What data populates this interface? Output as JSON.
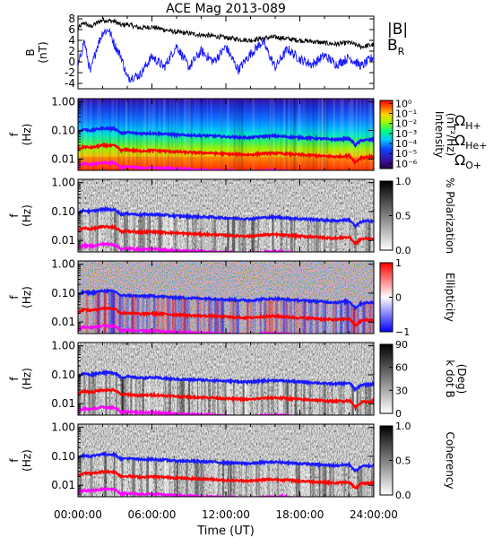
{
  "title": "ACE Mag 2013-089",
  "colors": {
    "b_total": "#000000",
    "b_r": "#1a1aff",
    "omega_h": "#1a1aff",
    "omega_he": "#ff0000",
    "omega_o": "#ff00ff"
  },
  "chart_data": [
    {
      "type": "line",
      "title": "ACE Mag 2013-089",
      "ylabel_line1": "B",
      "ylabel_line2": "(nT)",
      "ylim": [
        -5,
        8.5
      ],
      "yticks": [
        "8",
        "6",
        "4",
        "2",
        "0",
        "-2",
        "-4"
      ],
      "ytick_values": [
        8,
        6,
        4,
        2,
        0,
        -2,
        -4
      ],
      "xlim": [
        0,
        24
      ],
      "legend": "right",
      "series": [
        {
          "name": "|B|",
          "color": "#000000",
          "x": [
            0,
            0.5,
            1,
            1.5,
            2,
            3,
            3.5,
            4,
            5,
            6,
            7,
            8,
            9,
            10,
            11,
            12,
            13,
            14,
            15,
            16,
            17,
            18,
            19,
            20,
            21,
            22,
            23,
            24
          ],
          "values": [
            6.2,
            7.3,
            6.5,
            7.2,
            7.8,
            7.5,
            6.8,
            7,
            6.3,
            6.5,
            6,
            5.5,
            5.3,
            5,
            4.8,
            4.5,
            4.2,
            4,
            4.4,
            4.6,
            4.3,
            4,
            3.8,
            3.5,
            3.3,
            3.6,
            2.8,
            3.2
          ]
        },
        {
          "name": "B",
          "subscript": "R",
          "color": "#1a1aff",
          "x": [
            0,
            0.5,
            1,
            1.5,
            2,
            2.5,
            3,
            3.5,
            4,
            5,
            6,
            7,
            8,
            9,
            10,
            11,
            12,
            13,
            14,
            15,
            16,
            17,
            18,
            19,
            20,
            21,
            22,
            23,
            24
          ],
          "values": [
            -1,
            4,
            -2,
            2.5,
            5.5,
            6,
            3,
            1,
            -3,
            -2.5,
            1,
            -1,
            3,
            -1,
            2,
            0,
            2.8,
            -1.5,
            1.5,
            3.8,
            -1,
            2.4,
            0.5,
            -0.5,
            1.2,
            -0.5,
            0.8,
            -0.8,
            1
          ]
        }
      ]
    },
    {
      "type": "heatmap",
      "ylabel_line1": "f",
      "ylabel_line2": "(Hz)",
      "yticks": [
        "1.00",
        "0.10",
        "0.01"
      ],
      "ytick_values": [
        1,
        0.1,
        0.01
      ],
      "ylim": [
        0.004,
        1.3
      ],
      "colorbar": {
        "label_line1": "Intensity",
        "label_line2": "(nT²/Hz)",
        "ticks": [
          "10⁰",
          "10⁻¹",
          "10⁻²",
          "10⁻³",
          "10⁻⁴",
          "10⁻⁵",
          "10⁻⁶"
        ],
        "tick_values": [
          0,
          -1,
          -2,
          -3,
          -4,
          -5,
          -6
        ],
        "range": [
          -6.5,
          0.3
        ],
        "scale": "rainbow"
      },
      "legend_items": [
        {
          "name": "Ω",
          "subscript": "H+",
          "color": "#1a1aff"
        },
        {
          "name": "Ω",
          "subscript": "He+",
          "color": "#ff0000"
        },
        {
          "name": "Ω",
          "subscript": "O+",
          "color": "#ff00ff"
        }
      ]
    },
    {
      "type": "heatmap",
      "ylabel_line1": "f",
      "ylabel_line2": "(Hz)",
      "yticks": [
        "1.00",
        "0.10",
        "0.01"
      ],
      "ytick_values": [
        1,
        0.1,
        0.01
      ],
      "ylim": [
        0.004,
        1.3
      ],
      "colorbar": {
        "label_line1": "% Polarization",
        "label_line2": "",
        "ticks": [
          "1.0",
          "0.5",
          "0.0"
        ],
        "tick_values": [
          1,
          0.5,
          0
        ],
        "range": [
          0,
          1
        ],
        "scale": "gray"
      }
    },
    {
      "type": "heatmap",
      "ylabel_line1": "f",
      "ylabel_line2": "(Hz)",
      "yticks": [
        "1.00",
        "0.10",
        "0.01"
      ],
      "ytick_values": [
        1,
        0.1,
        0.01
      ],
      "ylim": [
        0.004,
        1.3
      ],
      "colorbar": {
        "label_line1": "Ellipticity",
        "label_line2": "",
        "ticks": [
          "1",
          "0",
          "−1"
        ],
        "tick_values": [
          1,
          0,
          -1
        ],
        "range": [
          -1,
          1
        ],
        "scale": "bwr"
      }
    },
    {
      "type": "heatmap",
      "ylabel_line1": "f",
      "ylabel_line2": "(Hz)",
      "yticks": [
        "1.00",
        "0.10",
        "0.01"
      ],
      "ytick_values": [
        1,
        0.1,
        0.01
      ],
      "ylim": [
        0.004,
        1.3
      ],
      "colorbar": {
        "label_line1": "k dot B",
        "label_line2": "(Deg)",
        "ticks": [
          "90",
          "60",
          "30",
          "0"
        ],
        "tick_values": [
          90,
          60,
          30,
          0
        ],
        "range": [
          0,
          90
        ],
        "scale": "gray"
      }
    },
    {
      "type": "heatmap",
      "ylabel_line1": "f",
      "ylabel_line2": "(Hz)",
      "yticks": [
        "1.00",
        "0.10",
        "0.01"
      ],
      "ytick_values": [
        1,
        0.1,
        0.01
      ],
      "ylim": [
        0.004,
        1.3
      ],
      "colorbar": {
        "label_line1": "Coherency",
        "label_line2": "",
        "ticks": [
          "1.0",
          "0.5",
          "0.0"
        ],
        "tick_values": [
          1,
          0.5,
          0
        ],
        "range": [
          0,
          1
        ],
        "scale": "gray"
      }
    }
  ],
  "gyrofrequency_lines": {
    "x": [
      0,
      0.5,
      1,
      1.5,
      2,
      3,
      3.5,
      4,
      5,
      6,
      7,
      8,
      9,
      10,
      11,
      12,
      13,
      14,
      15,
      16,
      17,
      18,
      19,
      20,
      21,
      22,
      22.5,
      23,
      24
    ],
    "omega_h": [
      0.09,
      0.11,
      0.1,
      0.11,
      0.12,
      0.115,
      0.08,
      0.085,
      0.078,
      0.08,
      0.075,
      0.07,
      0.068,
      0.066,
      0.064,
      0.06,
      0.058,
      0.056,
      0.062,
      0.064,
      0.06,
      0.056,
      0.054,
      0.05,
      0.048,
      0.052,
      0.03,
      0.045,
      0.048
    ],
    "omega_he": [
      0.022,
      0.027,
      0.025,
      0.027,
      0.03,
      0.029,
      0.02,
      0.021,
      0.019,
      0.02,
      0.019,
      0.018,
      0.017,
      0.0165,
      0.016,
      0.015,
      0.0145,
      0.014,
      0.0155,
      0.016,
      0.015,
      0.014,
      0.0135,
      0.0125,
      0.012,
      0.013,
      0.0075,
      0.0113,
      0.012
    ],
    "omega_o": [
      0.0056,
      0.0068,
      0.0063,
      0.0068,
      0.0075,
      0.0072,
      0.005,
      0.0053,
      0.0049,
      0.005,
      0.0047,
      0.0044,
      0.0043,
      0.0041,
      0.004,
      0.0038,
      0.0036,
      0.0035,
      0.0039,
      0.004,
      0.0038,
      0.0035,
      0.0034,
      0.0031,
      0.003,
      0.0033,
      0.0019,
      0.0028,
      0.003
    ]
  },
  "x_axis": {
    "label": "Time (UT)",
    "ticks": [
      "00:00:00",
      "06:00:00",
      "12:00:00",
      "18:00:00",
      "24:00:00"
    ],
    "tick_values": [
      0,
      6,
      12,
      18,
      24
    ]
  }
}
